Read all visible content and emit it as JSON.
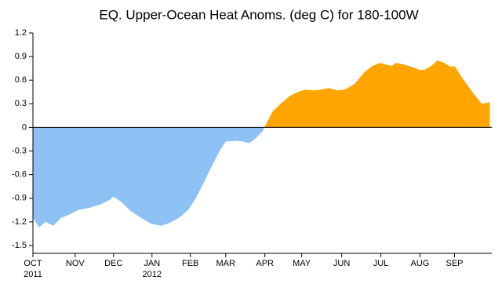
{
  "chart_data": {
    "type": "area",
    "title": "EQ. Upper-Ocean Heat Anoms. (deg C) for 180-100W",
    "x": [
      0,
      0.16,
      0.33,
      0.53,
      0.73,
      0.98,
      1.18,
      1.49,
      1.8,
      2,
      2.1,
      2.31,
      2.51,
      2.82,
      3.06,
      3.33,
      3.53,
      3.8,
      4.04,
      4.24,
      4.45,
      4.65,
      4.86,
      5.02,
      5.27,
      5.47,
      5.63,
      5.78,
      5.98,
      6.08,
      6.24,
      6.45,
      6.69,
      6.9,
      7.1,
      7.31,
      7.51,
      7.71,
      7.92,
      8.12,
      8.37,
      8.63,
      8.84,
      9.04,
      9.18,
      9.35,
      9.45,
      9.65,
      9.86,
      10.06,
      10.2,
      10.37,
      10.53,
      10.67,
      10.88,
      10.98,
      11.22,
      11.49,
      11.69,
      11.9
    ],
    "series": [
      {
        "values": [
          -1.15,
          -1.27,
          -1.2,
          -1.25,
          -1.15,
          -1.1,
          -1.05,
          -1.02,
          -0.97,
          -0.92,
          -0.88,
          -0.95,
          -1.05,
          -1.15,
          -1.22,
          -1.25,
          -1.22,
          -1.15,
          -1.05,
          -0.9,
          -0.7,
          -0.5,
          -0.3,
          -0.18,
          -0.17,
          -0.18,
          -0.2,
          -0.15,
          -0.05,
          0.05,
          0.2,
          0.3,
          0.4,
          0.45,
          0.48,
          0.47,
          0.48,
          0.5,
          0.47,
          0.48,
          0.55,
          0.7,
          0.78,
          0.82,
          0.8,
          0.78,
          0.82,
          0.8,
          0.77,
          0.73,
          0.73,
          0.78,
          0.85,
          0.83,
          0.77,
          0.78,
          0.6,
          0.42,
          0.3,
          0.32
        ]
      }
    ],
    "positive_color": "#ffa500",
    "negative_color": "#8ec1f3",
    "xlim": [
      0,
      11.95
    ],
    "xticks": [
      {
        "value": 0,
        "label": "OCT"
      },
      {
        "value": 1.1,
        "label": "NOV"
      },
      {
        "value": 2.1,
        "label": "DEC"
      },
      {
        "value": 3.1,
        "label": "JAN"
      },
      {
        "value": 4.1,
        "label": "FEB"
      },
      {
        "value": 5.02,
        "label": "MAR"
      },
      {
        "value": 6.04,
        "label": "APR"
      },
      {
        "value": 7,
        "label": "MAY"
      },
      {
        "value": 8.04,
        "label": "JUN"
      },
      {
        "value": 9.06,
        "label": "JUL"
      },
      {
        "value": 10.08,
        "label": "AUG"
      },
      {
        "value": 10.98,
        "label": "SEP"
      }
    ],
    "xtick_years": [
      {
        "value": 0,
        "label": "2011"
      },
      {
        "value": 3.1,
        "label": "2012"
      }
    ],
    "ylim": [
      -1.6,
      1.2
    ],
    "yticks": [
      {
        "value": 1.2,
        "label": "1.2"
      },
      {
        "value": 0.9,
        "label": "0.9"
      },
      {
        "value": 0.6,
        "label": "0.6"
      },
      {
        "value": 0.3,
        "label": "0.3"
      },
      0,
      {
        "value": -0.3,
        "label": "-0.3"
      },
      {
        "value": -0.6,
        "label": "-0.6"
      },
      {
        "value": -0.9,
        "label": "-0.9"
      },
      {
        "value": -1.2,
        "label": "-1.2"
      },
      {
        "value": -1.5,
        "label": "-1.5"
      }
    ]
  }
}
